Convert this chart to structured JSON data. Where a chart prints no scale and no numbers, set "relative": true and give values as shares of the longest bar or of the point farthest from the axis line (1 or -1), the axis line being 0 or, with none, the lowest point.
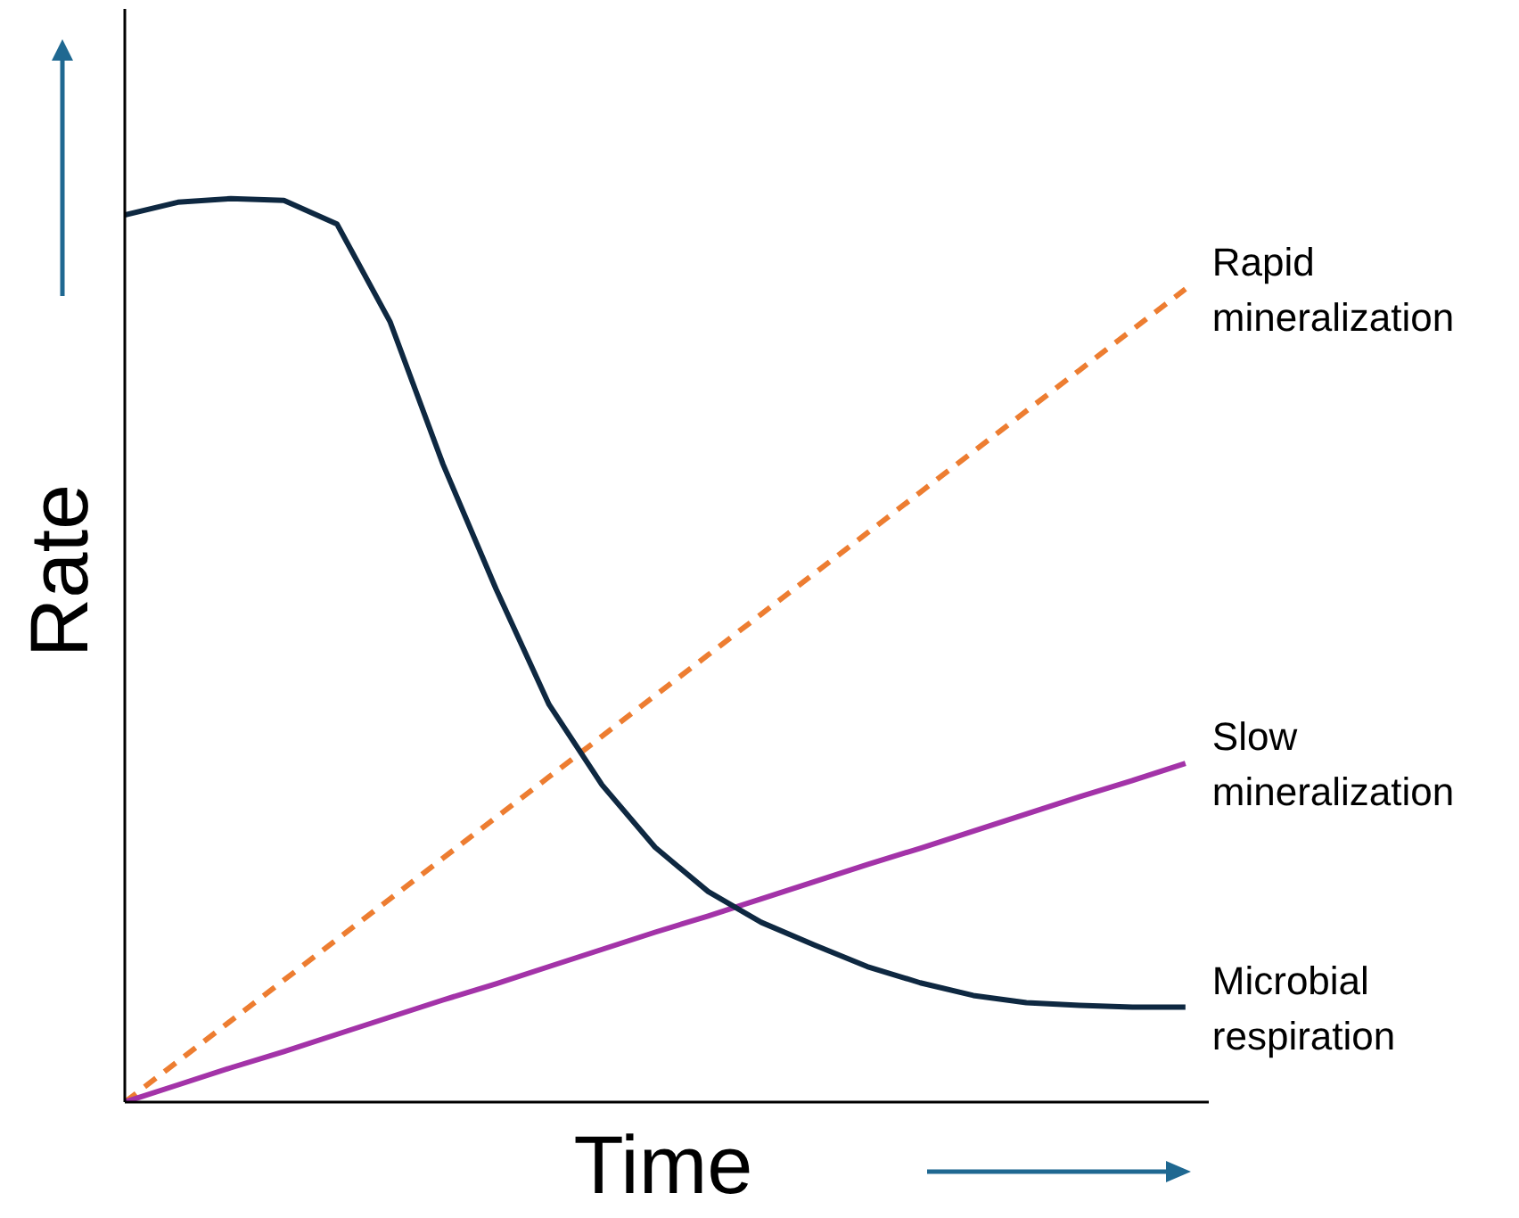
{
  "chart_data": {
    "type": "line",
    "relative": true,
    "xlabel": "Time",
    "ylabel": "Rate",
    "legend": false,
    "grid": false,
    "marker": "none",
    "categories": [
      null,
      null,
      null,
      null,
      null,
      null,
      null,
      null,
      null,
      null,
      null,
      null,
      null,
      null,
      null,
      null,
      null,
      null,
      null,
      null,
      null
    ],
    "series": [
      {
        "name": "Rapid mineralization",
        "color": "#ed7d31",
        "line_style": "dashed",
        "values": [
          0,
          0.045,
          0.09,
          0.135,
          0.18,
          0.225,
          0.27,
          0.315,
          0.36,
          0.405,
          0.45,
          0.495,
          0.54,
          0.585,
          0.63,
          0.675,
          0.72,
          0.765,
          0.81,
          0.855,
          0.9
        ]
      },
      {
        "name": "Slow mineralization",
        "color": "#a333a8",
        "line_style": "solid",
        "values": [
          0,
          0.019,
          0.038,
          0.056,
          0.075,
          0.094,
          0.113,
          0.131,
          0.15,
          0.169,
          0.188,
          0.206,
          0.225,
          0.244,
          0.263,
          0.281,
          0.3,
          0.319,
          0.338,
          0.356,
          0.375
        ]
      },
      {
        "name": "Microbial respiration",
        "color": "#0e2841",
        "line_style": "solid",
        "values": [
          0.982,
          0.996,
          1,
          0.998,
          0.972,
          0.864,
          0.706,
          0.568,
          0.44,
          0.351,
          0.282,
          0.233,
          0.199,
          0.174,
          0.15,
          0.132,
          0.118,
          0.11,
          0.107,
          0.105,
          0.105
        ]
      }
    ]
  }
}
